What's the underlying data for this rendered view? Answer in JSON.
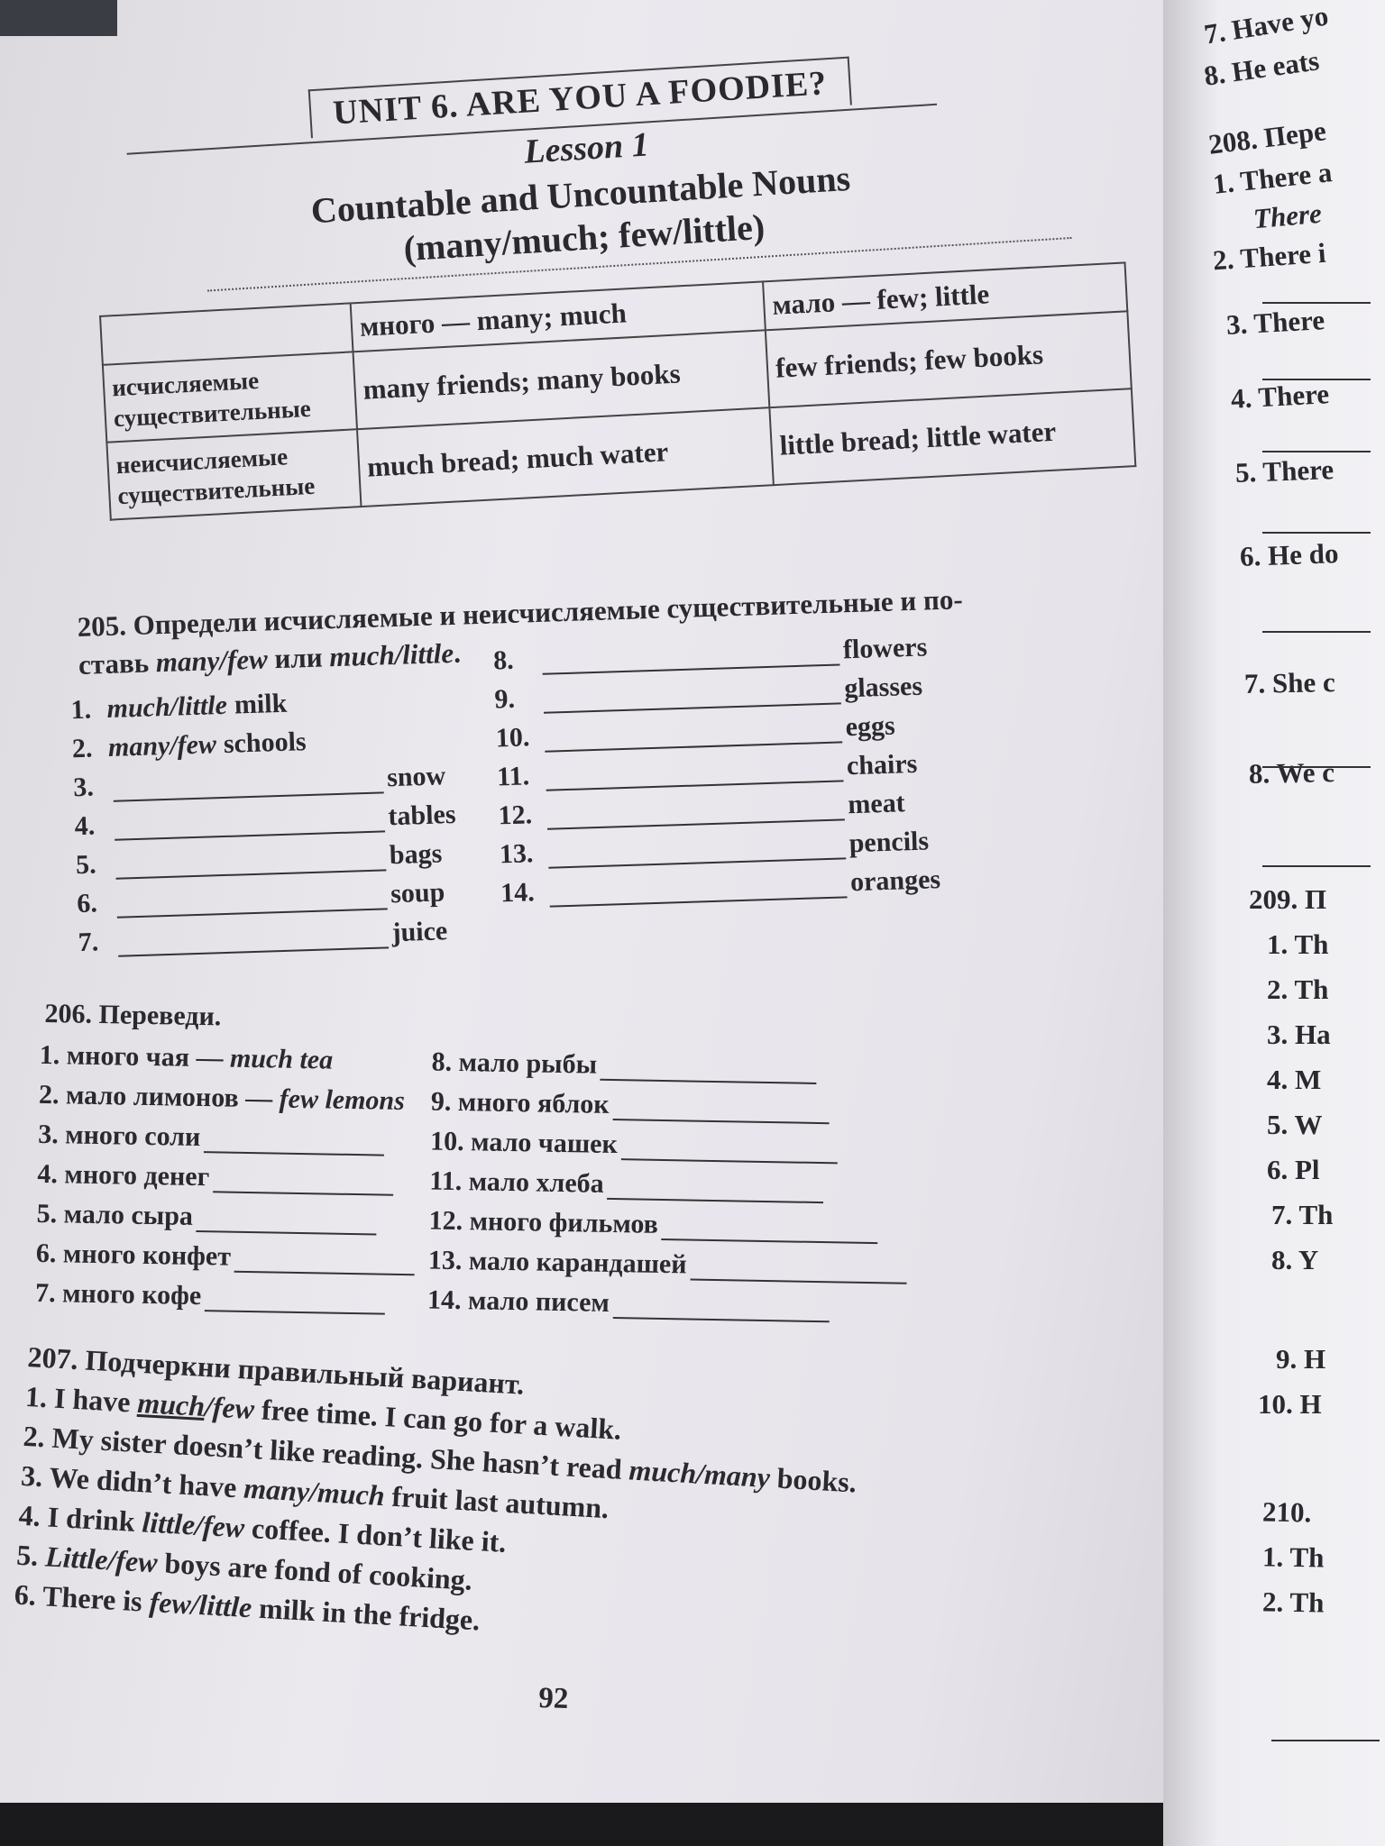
{
  "header": {
    "unit": "UNIT 6. ARE YOU A FOODIE?",
    "lesson": "Lesson 1",
    "title": "Countable and Uncountable Nouns",
    "subtitle": "(many/much; few/little)"
  },
  "table": {
    "columns": [
      "",
      "много — many; much",
      "мало — few; little"
    ],
    "rows": [
      {
        "head": [
          "исчисляемые",
          "существительные"
        ],
        "many": "many friends; many books",
        "few": "few friends; few books"
      },
      {
        "head": [
          "неисчисляемые",
          "существительные"
        ],
        "many": "much bread; much water",
        "few": "little bread; little water"
      }
    ]
  },
  "ex205": {
    "title_line1": "205. Определи исчисляемые и неисчисляемые существительные и по-",
    "title_line2_prefix": "ставь ",
    "title_line2_opt1": "many/few",
    "title_line2_mid": " или ",
    "title_line2_opt2": "much/little",
    "title_line2_end": ".",
    "left": [
      {
        "num": "1.",
        "answer": "much/little",
        "word": "milk"
      },
      {
        "num": "2.",
        "answer": "many/few",
        "word": "schools"
      },
      {
        "num": "3.",
        "word": "snow"
      },
      {
        "num": "4.",
        "word": "tables"
      },
      {
        "num": "5.",
        "word": "bags"
      },
      {
        "num": "6.",
        "word": "soup"
      },
      {
        "num": "7.",
        "word": "juice"
      }
    ],
    "right": [
      {
        "num": "8.",
        "word": "flowers"
      },
      {
        "num": "9.",
        "word": "glasses"
      },
      {
        "num": "10.",
        "word": "eggs"
      },
      {
        "num": "11.",
        "word": "chairs"
      },
      {
        "num": "12.",
        "word": "meat"
      },
      {
        "num": "13.",
        "word": "pencils"
      },
      {
        "num": "14.",
        "word": "oranges"
      }
    ]
  },
  "ex206": {
    "title": "206. Переведи.",
    "left": [
      {
        "text": "1. много чая — ",
        "answer": "much tea"
      },
      {
        "text": "2. мало лимонов — ",
        "answer": "few lemons"
      },
      {
        "text": "3. много соли"
      },
      {
        "text": "4. много денег"
      },
      {
        "text": "5. мало сыра"
      },
      {
        "text": "6. много конфет"
      },
      {
        "text": "7. много кофе"
      }
    ],
    "right": [
      {
        "text": "8. мало рыбы"
      },
      {
        "text": "9. много яблок"
      },
      {
        "text": "10. мало чашек"
      },
      {
        "text": "11. мало хлеба"
      },
      {
        "text": "12. много фильмов"
      },
      {
        "text": "13. мало карандашей"
      },
      {
        "text": "14. мало писем"
      }
    ]
  },
  "ex207": {
    "title": "207. Подчеркни правильный вариант.",
    "items": [
      [
        {
          "t": "1. I have "
        },
        {
          "t": "much",
          "i": true,
          "u": true
        },
        {
          "t": "/few",
          "i": true
        },
        {
          "t": " free time. I can go for a walk."
        }
      ],
      [
        {
          "t": "2. My sister doesn’t like reading. She hasn’t read "
        },
        {
          "t": "much/many",
          "i": true
        },
        {
          "t": " books."
        }
      ],
      [
        {
          "t": "3. We didn’t have "
        },
        {
          "t": "many/much",
          "i": true
        },
        {
          "t": " fruit last autumn."
        }
      ],
      [
        {
          "t": "4. I drink "
        },
        {
          "t": "little/few",
          "i": true
        },
        {
          "t": " coffee. I don’t like it."
        }
      ],
      [
        {
          "t": "5. "
        },
        {
          "t": "Little/few",
          "i": true
        },
        {
          "t": " boys are fond of cooking."
        }
      ],
      [
        {
          "t": "6. There is "
        },
        {
          "t": "few/little",
          "i": true
        },
        {
          "t": " milk in the fridge."
        }
      ]
    ]
  },
  "page_number": "92",
  "right_page": {
    "lines": [
      "7. Have yo",
      "8. He eats",
      "208. Пере",
      "1. There a",
      "There",
      "2. There i",
      "3. There",
      "4. There",
      "5. There",
      "6. He do",
      "7. She c",
      "8. We c",
      "209. П",
      "1. Th",
      "2. Th",
      "3. Ha",
      "4. M",
      "5. W",
      "6. Pl",
      "7. Th",
      "8. Y",
      "9. H",
      "10. H",
      "210.",
      "1. Th",
      "2. Th"
    ]
  }
}
